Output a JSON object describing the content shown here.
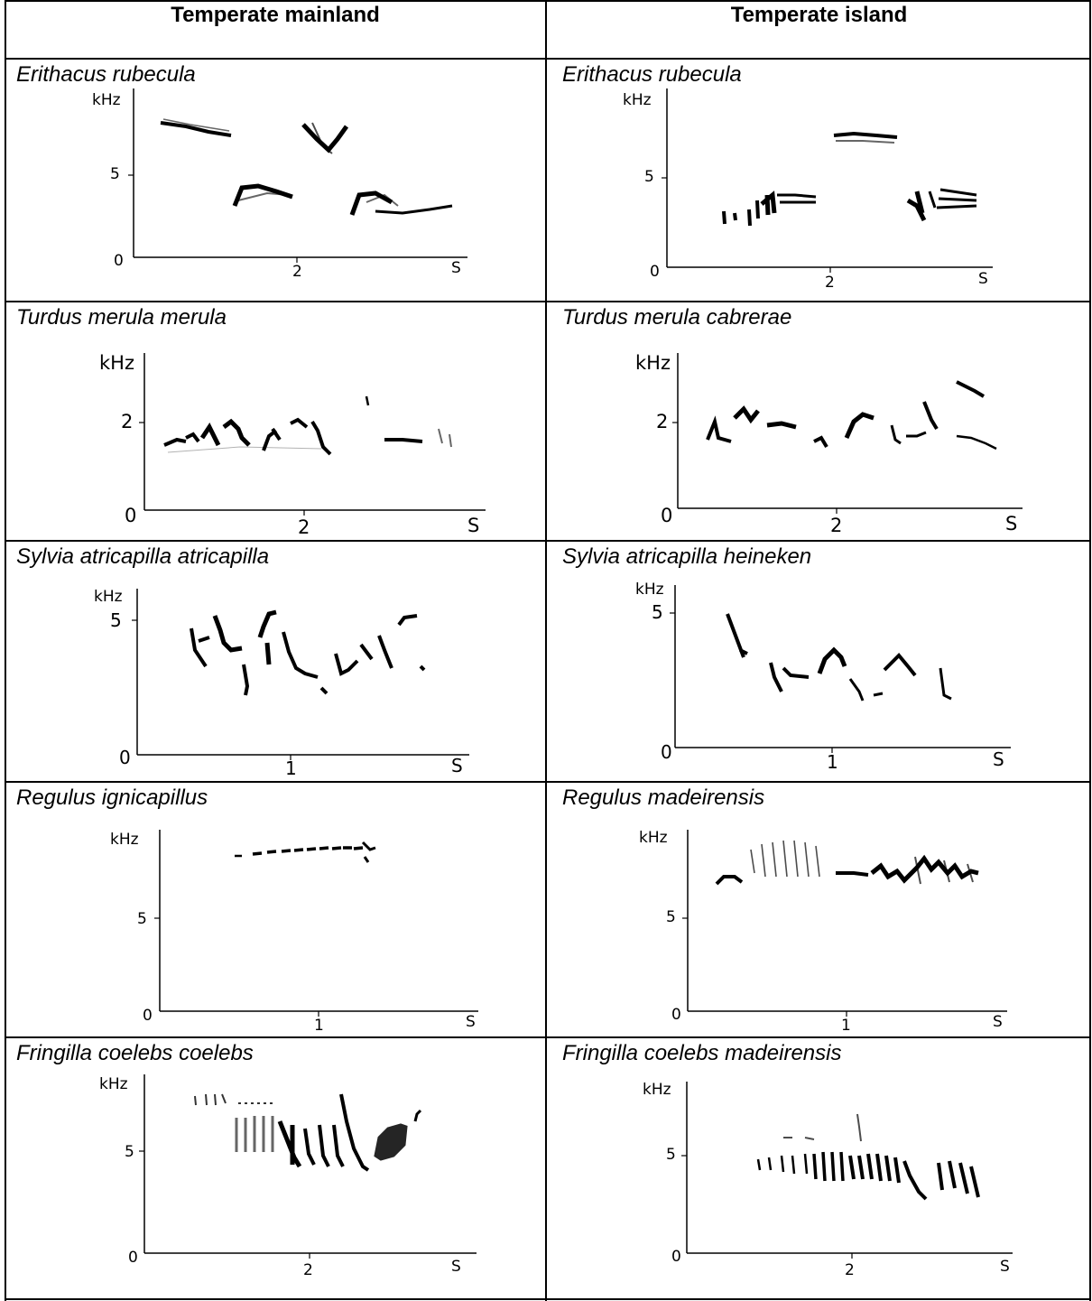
{
  "headers": {
    "mainland": "Temperate mainland",
    "island": "Temperate island"
  },
  "rows": [
    {
      "mainland": {
        "species": "Erithacus rubecula",
        "y_unit": "kHz",
        "y_ticks": [
          "0",
          "5"
        ],
        "x_ticks": [
          "2"
        ],
        "x_unit": "S"
      },
      "island": {
        "species": "Erithacus rubecula",
        "y_unit": "kHz",
        "y_ticks": [
          "0",
          "5"
        ],
        "x_ticks": [
          "2"
        ],
        "x_unit": "S"
      }
    },
    {
      "mainland": {
        "species": "Turdus merula merula",
        "y_unit": "kHz",
        "y_ticks": [
          "0",
          "2"
        ],
        "x_ticks": [
          "2"
        ],
        "x_unit": "S"
      },
      "island": {
        "species": "Turdus merula cabrerae",
        "y_unit": "kHz",
        "y_ticks": [
          "0",
          "2"
        ],
        "x_ticks": [
          "2"
        ],
        "x_unit": "S"
      }
    },
    {
      "mainland": {
        "species": "Sylvia atricapilla atricapilla",
        "y_unit": "kHz",
        "y_ticks": [
          "0",
          "5"
        ],
        "x_ticks": [
          "1"
        ],
        "x_unit": "S"
      },
      "island": {
        "species": "Sylvia atricapilla heineken",
        "y_unit": "kHz",
        "y_ticks": [
          "0",
          "5"
        ],
        "x_ticks": [
          "1"
        ],
        "x_unit": "S"
      }
    },
    {
      "mainland": {
        "species": "Regulus ignicapillus",
        "y_unit": "kHz",
        "y_ticks": [
          "0",
          "5"
        ],
        "x_ticks": [
          "1"
        ],
        "x_unit": "S"
      },
      "island": {
        "species": "Regulus madeirensis",
        "y_unit": "kHz",
        "y_ticks": [
          "0",
          "5"
        ],
        "x_ticks": [
          "1"
        ],
        "x_unit": "S"
      }
    },
    {
      "mainland": {
        "species": "Fringilla coelebs coelebs",
        "y_unit": "kHz",
        "y_ticks": [
          "0",
          "5"
        ],
        "x_ticks": [
          "2"
        ],
        "x_unit": "S"
      },
      "island": {
        "species": "Fringilla coelebs madeirensis",
        "y_unit": "kHz",
        "y_ticks": [
          "0",
          "5"
        ],
        "x_ticks": [
          "2"
        ],
        "x_unit": "S"
      }
    }
  ]
}
